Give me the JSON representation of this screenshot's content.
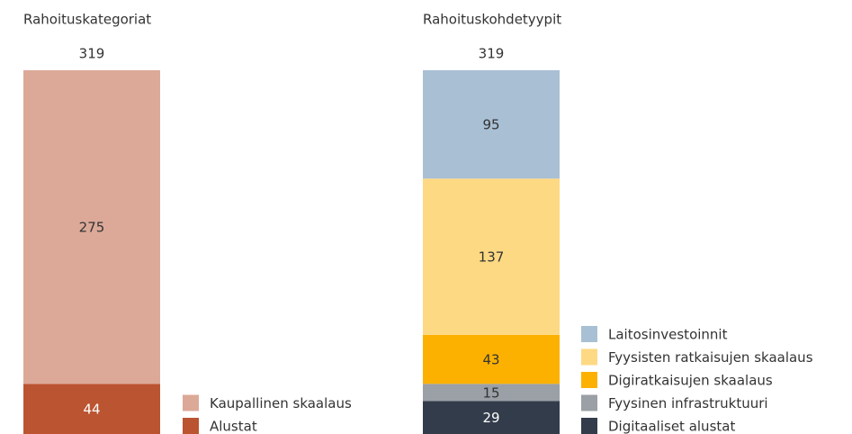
{
  "chart_data": [
    {
      "type": "stacked_bar",
      "title": "Rahoituskategoriat",
      "total": 319,
      "series": [
        {
          "name": "Alustat",
          "color": "#bb5431",
          "values": [
            44
          ]
        },
        {
          "name": "Kaupallinen skaalaus",
          "color": "#dca998",
          "values": [
            275
          ]
        }
      ]
    },
    {
      "type": "stacked_bar",
      "title": "Rahoituskohdetyypit",
      "total": 319,
      "series": [
        {
          "name": "Digitaaliset alustat",
          "color": "#323c4b",
          "values": [
            29
          ]
        },
        {
          "name": "Fyysinen infrastruktuuri",
          "color": "#9b9fa6",
          "values": [
            15
          ]
        },
        {
          "name": "Digiratkaisujen skaalaus",
          "color": "#fcb100",
          "values": [
            43
          ]
        },
        {
          "name": "Fyysisten ratkaisujen skaalaus",
          "color": "#fdd983",
          "values": [
            137
          ]
        },
        {
          "name": "Laitosinvestoinnit",
          "color": "#a9bfd4",
          "values": [
            95
          ]
        }
      ]
    }
  ]
}
